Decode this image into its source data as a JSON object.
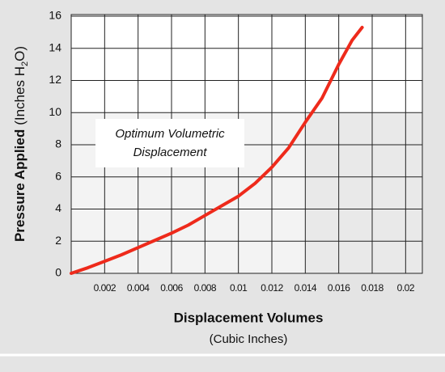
{
  "chart_data": {
    "type": "line",
    "y_label": {
      "main": "Pressure Applied",
      "unit_prefix": "(Inches H",
      "subscript": "2",
      "unit_suffix": "O)"
    },
    "x_label": {
      "main": "Displacement Volumes",
      "unit": "(Cubic Inches)"
    },
    "annotation": {
      "lines": [
        "Optimum Volumetric",
        "Displacement"
      ],
      "xlim": [
        0,
        0.014
      ],
      "ylim": [
        0,
        10
      ]
    },
    "series": [
      {
        "color": "#ee2a1b",
        "x": [
          0,
          0.001,
          0.002,
          0.003,
          0.004,
          0.005,
          0.006,
          0.007,
          0.008,
          0.009,
          0.01,
          0.011,
          0.012,
          0.013,
          0.014,
          0.015,
          0.016,
          0.0168,
          0.0174
        ],
        "values": [
          0,
          0.35,
          0.75,
          1.15,
          1.6,
          2.05,
          2.5,
          3.0,
          3.6,
          4.2,
          4.8,
          5.6,
          6.6,
          7.8,
          9.4,
          10.9,
          13.0,
          14.5,
          15.3
        ]
      }
    ],
    "xlim": [
      0,
      0.021
    ],
    "ylim": [
      0,
      16.1
    ],
    "xticks": [
      0.002,
      0.004,
      0.006,
      0.008,
      0.01,
      0.012,
      0.014,
      0.016,
      0.018,
      0.02
    ],
    "yticks": [
      0,
      2,
      4,
      6,
      8,
      10,
      12,
      14,
      16
    ],
    "grid": true
  }
}
